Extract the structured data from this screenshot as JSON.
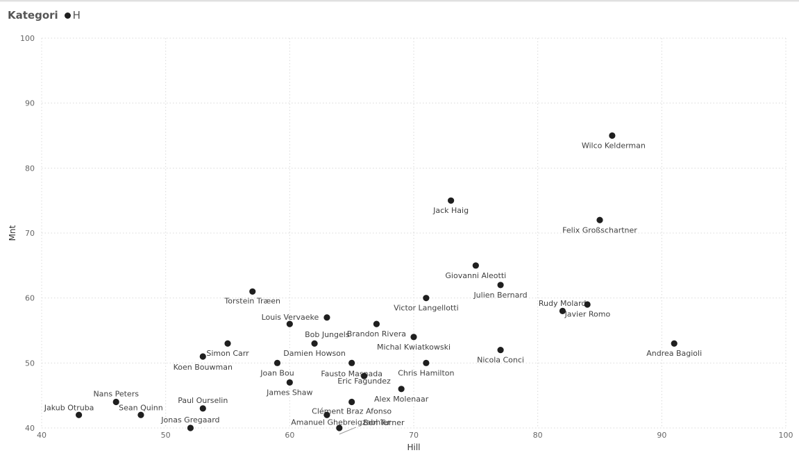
{
  "legend": {
    "title": "Kategori",
    "items": [
      {
        "label": "H",
        "color": "#1f1f1f"
      }
    ]
  },
  "chart_data": {
    "type": "scatter",
    "xlabel": "Hill",
    "ylabel": "Mnt",
    "xlim": [
      40,
      100
    ],
    "ylim": [
      40,
      100
    ],
    "xticks": [
      40,
      50,
      60,
      70,
      80,
      90,
      100
    ],
    "yticks": [
      40,
      50,
      60,
      70,
      80,
      90,
      100
    ],
    "grid": true,
    "legend_position": "top-left",
    "series": [
      {
        "name": "H",
        "color": "#1f1f1f",
        "points": [
          {
            "label": "Wilco Kelderman",
            "x": 86,
            "y": 85
          },
          {
            "label": "Jack Haig",
            "x": 73,
            "y": 75
          },
          {
            "label": "Felix Großschartner",
            "x": 85,
            "y": 72
          },
          {
            "label": "Giovanni Aleotti",
            "x": 75,
            "y": 65
          },
          {
            "label": "Julien Bernard",
            "x": 77,
            "y": 62
          },
          {
            "label": "Torstein Træen",
            "x": 57,
            "y": 61
          },
          {
            "label": "Victor Langellotti",
            "x": 71,
            "y": 60
          },
          {
            "label": "Rudy Molard",
            "x": 84,
            "y": 59
          },
          {
            "label": "Javier Romo",
            "x": 82,
            "y": 58
          },
          {
            "label": "Louis Vervaeke",
            "x": 63,
            "y": 57
          },
          {
            "label": "Bob Jungels",
            "x": 60,
            "y": 56
          },
          {
            "label": "Brandon Rivera",
            "x": 67,
            "y": 56
          },
          {
            "label": "Michal Kwiatkowski",
            "x": 70,
            "y": 54
          },
          {
            "label": "Simon Carr",
            "x": 55,
            "y": 53
          },
          {
            "label": "Damien Howson",
            "x": 62,
            "y": 53
          },
          {
            "label": "Andrea Bagioli",
            "x": 91,
            "y": 53
          },
          {
            "label": "Nicola Conci",
            "x": 77,
            "y": 52
          },
          {
            "label": "Koen Bouwman",
            "x": 53,
            "y": 51
          },
          {
            "label": "Joan Bou",
            "x": 59,
            "y": 50
          },
          {
            "label": "Fausto Masnada",
            "x": 65,
            "y": 50
          },
          {
            "label": "Chris Hamilton",
            "x": 71,
            "y": 50
          },
          {
            "label": "Eric Fagundez",
            "x": 66,
            "y": 48
          },
          {
            "label": "James Shaw",
            "x": 60,
            "y": 47
          },
          {
            "label": "Alex Molenaar",
            "x": 69,
            "y": 46
          },
          {
            "label": "Nans Peters",
            "x": 46,
            "y": 44
          },
          {
            "label": "Clément Braz Afonso",
            "x": 65,
            "y": 44
          },
          {
            "label": "Paul Ourselin",
            "x": 53,
            "y": 43
          },
          {
            "label": "Jakub Otruba",
            "x": 43,
            "y": 42
          },
          {
            "label": "Sean Quinn",
            "x": 48,
            "y": 42
          },
          {
            "label": "Amanuel Ghebreigzabhier",
            "x": 63,
            "y": 42
          },
          {
            "label": "Jonas Gregaard",
            "x": 52,
            "y": 40
          },
          {
            "label": "Ben Turner",
            "x": 64,
            "y": 40
          }
        ]
      }
    ]
  }
}
